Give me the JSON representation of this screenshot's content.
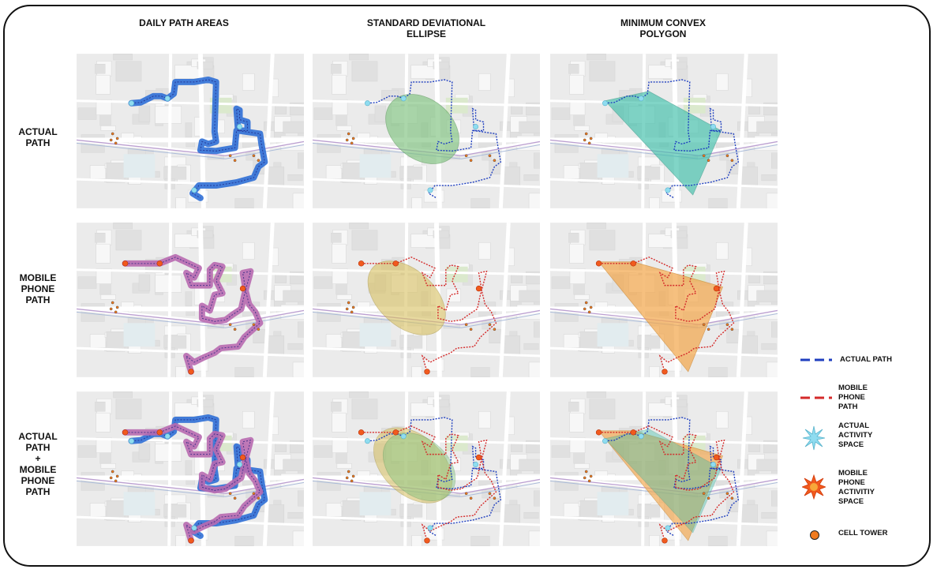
{
  "columns": [
    "DAILY PATH AREAS",
    "STANDARD DEVIATIONAL",
    "ELLIPSE",
    "MINIMUM CONVEX",
    "POLYGON"
  ],
  "rows": [
    {
      "lines": [
        "ACTUAL",
        "PATH"
      ]
    },
    {
      "lines": [
        "MOBILE",
        "PHONE",
        "PATH"
      ]
    },
    {
      "lines": [
        "ACTUAL",
        "PATH",
        "+",
        "MOBILE",
        "PHONE",
        "PATH"
      ]
    }
  ],
  "legend": {
    "actual_path": [
      "ACTUAL PATH"
    ],
    "mobile_path": [
      "MOBILE",
      "PHONE",
      "PATH"
    ],
    "actual_space": [
      "ACTUAL",
      "ACTIVITY",
      "SPACE"
    ],
    "mobile_space": [
      "MOBILE",
      "PHONE",
      "ACTIVITIY",
      "SPACE"
    ],
    "cell_tower": [
      "CELL TOWER"
    ]
  },
  "colors": {
    "actual_path": "#1f3fbf",
    "mobile_path": "#d42a2a",
    "daily_actual": "#2f6fd6",
    "daily_mobile": "#b86ab0",
    "ellipse_actual": "#7fc27f",
    "ellipse_mobile": "#d8c060",
    "polygon_actual": "#3fbfaa",
    "polygon_mobile": "#f3a64a",
    "cell_tower": "#f07b1f",
    "activity_star": "#8fdcf0"
  }
}
